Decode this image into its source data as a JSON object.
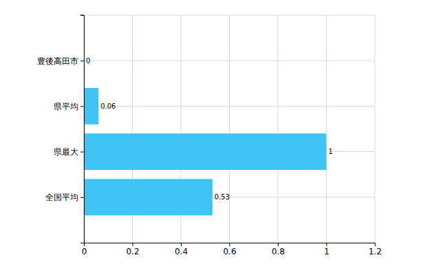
{
  "chart_data": {
    "type": "bar",
    "orientation": "horizontal",
    "categories": [
      "豊後高田市",
      "県平均",
      "県最大",
      "全国平均"
    ],
    "values": [
      0,
      0.06,
      1,
      0.53
    ],
    "color": "#3fc5f5",
    "xlim": [
      0,
      1.2
    ],
    "xticks": [
      0,
      0.2,
      0.4,
      0.6,
      0.8,
      1,
      1.2
    ],
    "grid": true,
    "data_labels": true
  }
}
